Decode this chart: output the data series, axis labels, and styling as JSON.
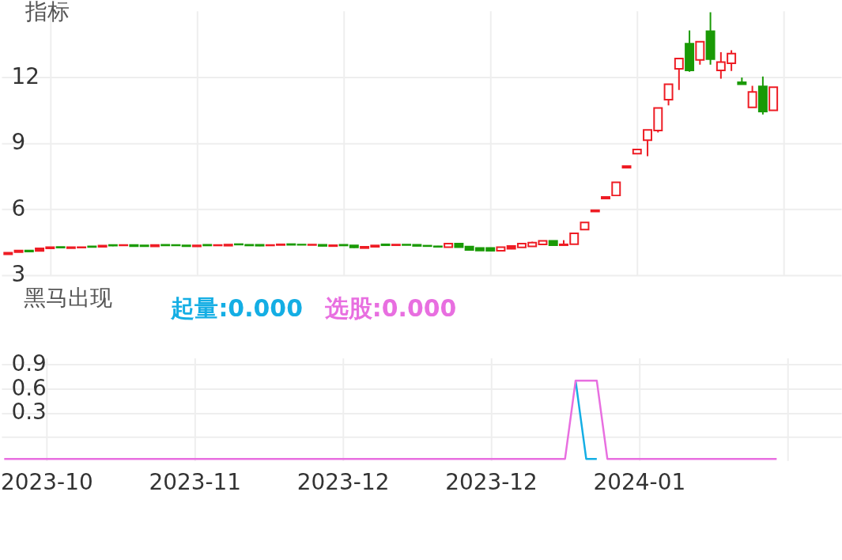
{
  "chart_data": [
    {
      "type": "candlestick",
      "title": "指标",
      "categories": [
        null,
        null,
        null,
        null,
        "2023-10",
        null,
        null,
        null,
        null,
        null,
        null,
        null,
        null,
        null,
        null,
        null,
        null,
        null,
        "2023-11",
        null,
        null,
        null,
        null,
        null,
        null,
        null,
        null,
        null,
        null,
        null,
        null,
        null,
        "2023-12",
        null,
        null,
        null,
        null,
        null,
        null,
        null,
        null,
        null,
        null,
        null,
        null,
        null,
        "2023-12",
        null,
        null,
        null,
        null,
        null,
        null,
        null,
        null,
        null,
        null,
        null,
        null,
        null,
        "2024-01",
        null,
        null,
        null,
        null,
        null,
        null,
        null,
        null,
        null,
        null,
        null,
        null,
        null
      ],
      "ohlc": [
        [
          3.95,
          4.02,
          3.93,
          4.02
        ],
        [
          4.05,
          4.13,
          4.04,
          4.12
        ],
        [
          4.12,
          4.13,
          4.06,
          4.07
        ],
        [
          4.1,
          4.22,
          4.1,
          4.22
        ],
        [
          4.22,
          4.28,
          4.19,
          4.27
        ],
        [
          4.28,
          4.28,
          4.24,
          4.25
        ],
        [
          4.23,
          4.28,
          4.23,
          4.27
        ],
        [
          4.25,
          4.28,
          4.25,
          4.27
        ],
        [
          4.31,
          4.31,
          4.27,
          4.28
        ],
        [
          4.29,
          4.34,
          4.29,
          4.34
        ],
        [
          4.37,
          4.38,
          4.32,
          4.34
        ],
        [
          4.35,
          4.37,
          4.35,
          4.37
        ],
        [
          4.37,
          4.37,
          4.31,
          4.32
        ],
        [
          4.35,
          4.35,
          4.31,
          4.32
        ],
        [
          4.31,
          4.37,
          4.31,
          4.37
        ],
        [
          4.38,
          4.38,
          4.34,
          4.35
        ],
        [
          4.37,
          4.37,
          4.34,
          4.35
        ],
        [
          4.35,
          4.35,
          4.31,
          4.32
        ],
        [
          4.31,
          4.35,
          4.31,
          4.35
        ],
        [
          4.38,
          4.38,
          4.34,
          4.35
        ],
        [
          4.35,
          4.38,
          4.35,
          4.37
        ],
        [
          4.34,
          4.39,
          4.34,
          4.39
        ],
        [
          4.41,
          4.41,
          4.37,
          4.39
        ],
        [
          4.38,
          4.38,
          4.34,
          4.35
        ],
        [
          4.38,
          4.38,
          4.32,
          4.34
        ],
        [
          4.35,
          4.37,
          4.35,
          4.37
        ],
        [
          4.37,
          4.41,
          4.37,
          4.4
        ],
        [
          4.41,
          4.41,
          4.37,
          4.38
        ],
        [
          4.39,
          4.39,
          4.37,
          4.38
        ],
        [
          4.37,
          4.4,
          4.37,
          4.39
        ],
        [
          4.38,
          4.38,
          4.32,
          4.33
        ],
        [
          4.32,
          4.36,
          4.32,
          4.36
        ],
        [
          4.38,
          4.38,
          4.34,
          4.35
        ],
        [
          4.35,
          4.35,
          4.24,
          4.26
        ],
        [
          4.23,
          4.3,
          4.22,
          4.29
        ],
        [
          4.29,
          4.35,
          4.29,
          4.35
        ],
        [
          4.4,
          4.4,
          4.35,
          4.36
        ],
        [
          4.36,
          4.39,
          4.36,
          4.39
        ],
        [
          4.39,
          4.39,
          4.36,
          4.37
        ],
        [
          4.38,
          4.38,
          4.32,
          4.33
        ],
        [
          4.34,
          4.34,
          4.31,
          4.32
        ],
        [
          4.31,
          4.33,
          4.28,
          4.29
        ],
        [
          4.27,
          4.43,
          4.27,
          4.43
        ],
        [
          4.43,
          4.43,
          4.26,
          4.27
        ],
        [
          4.3,
          4.3,
          4.14,
          4.15
        ],
        [
          4.24,
          4.24,
          4.11,
          4.12
        ],
        [
          4.24,
          4.24,
          4.09,
          4.11
        ],
        [
          4.11,
          4.27,
          4.11,
          4.27
        ],
        [
          4.2,
          4.33,
          4.18,
          4.33
        ],
        [
          4.26,
          4.43,
          4.26,
          4.43
        ],
        [
          4.31,
          4.52,
          4.31,
          4.48
        ],
        [
          4.4,
          4.56,
          4.4,
          4.56
        ],
        [
          4.56,
          4.56,
          4.36,
          4.36
        ],
        [
          4.36,
          4.59,
          4.35,
          4.4
        ],
        [
          4.41,
          4.9,
          4.41,
          4.9
        ],
        [
          5.07,
          5.39,
          5.07,
          5.39
        ],
        [
          5.89,
          5.95,
          5.89,
          5.95
        ],
        [
          6.48,
          6.55,
          6.48,
          6.55
        ],
        [
          6.62,
          7.22,
          6.6,
          7.22
        ],
        [
          7.88,
          7.95,
          7.88,
          7.95
        ],
        [
          8.52,
          8.71,
          8.49,
          8.71
        ],
        [
          9.13,
          9.6,
          8.4,
          9.6
        ],
        [
          9.57,
          10.59,
          9.48,
          10.59
        ],
        [
          10.97,
          11.67,
          10.71,
          11.67
        ],
        [
          12.37,
          12.84,
          11.41,
          12.84
        ],
        [
          13.51,
          14.11,
          12.24,
          12.3
        ],
        [
          12.78,
          13.6,
          12.56,
          13.6
        ],
        [
          14.08,
          14.94,
          12.56,
          12.81
        ],
        [
          12.3,
          13.13,
          11.92,
          12.68
        ],
        [
          12.62,
          13.22,
          12.27,
          13.06
        ],
        [
          11.76,
          11.98,
          11.67,
          11.67
        ],
        [
          10.62,
          11.6,
          10.62,
          11.32
        ],
        [
          11.57,
          12.02,
          10.3,
          10.43
        ],
        [
          10.49,
          11.54,
          10.49,
          11.54
        ]
      ],
      "colors": [
        "#ee1c24",
        "#ee1c24",
        "#1a9a06",
        "#ee1c24",
        "#ee1c24",
        "#1a9a06",
        "#ee1c24",
        "#ee1c24",
        "#1a9a06",
        "#ee1c24",
        "#1a9a06",
        "#ee1c24",
        "#1a9a06",
        "#1a9a06",
        "#ee1c24",
        "#1a9a06",
        "#1a9a06",
        "#1a9a06",
        "#ee1c24",
        "#1a9a06",
        "#ee1c24",
        "#ee1c24",
        "#1a9a06",
        "#1a9a06",
        "#1a9a06",
        "#ee1c24",
        "#ee1c24",
        "#1a9a06",
        "#1a9a06",
        "#ee1c24",
        "#1a9a06",
        "#ee1c24",
        "#1a9a06",
        "#1a9a06",
        "#ee1c24",
        "#ee1c24",
        "#1a9a06",
        "#ee1c24",
        "#1a9a06",
        "#1a9a06",
        "#1a9a06",
        "#1a9a06",
        "#ee1c24",
        "#1a9a06",
        "#1a9a06",
        "#1a9a06",
        "#1a9a06",
        "#ee1c24",
        "#ee1c24",
        "#ee1c24",
        "#ee1c24",
        "#ee1c24",
        "#1a9a06",
        "#ee1c24",
        "#ee1c24",
        "#ee1c24",
        "#ee1c24",
        "#ee1c24",
        "#ee1c24",
        "#ee1c24",
        "#ee1c24",
        "#ee1c24",
        "#ee1c24",
        "#ee1c24",
        "#ee1c24",
        "#1a9a06",
        "#ee1c24",
        "#1a9a06",
        "#ee1c24",
        "#ee1c24",
        "#1a9a06",
        "#ee1c24",
        "#1a9a06",
        "#ee1c24"
      ],
      "ylim": [
        3,
        15
      ],
      "yticks": [
        3,
        6,
        9,
        12
      ],
      "grid": true,
      "tick_labels": "y"
    },
    {
      "type": "line",
      "title": "黑马出现",
      "categories": [
        null,
        null,
        null,
        null,
        "2023-10",
        null,
        null,
        null,
        null,
        null,
        null,
        null,
        null,
        null,
        null,
        null,
        null,
        null,
        "2023-11",
        null,
        null,
        null,
        null,
        null,
        null,
        null,
        null,
        null,
        null,
        null,
        null,
        null,
        "2023-12",
        null,
        null,
        null,
        null,
        null,
        null,
        null,
        null,
        null,
        null,
        null,
        null,
        null,
        "2023-12",
        null,
        null,
        null,
        null,
        null,
        null,
        null,
        null,
        null,
        null,
        null,
        null,
        null,
        "2024-01",
        null,
        null,
        null,
        null,
        null,
        null,
        null,
        null,
        null,
        null,
        null,
        null,
        null
      ],
      "series": [
        {
          "color": "#14aee4",
          "values": [
            null,
            null,
            null,
            null,
            null,
            null,
            null,
            null,
            null,
            null,
            null,
            null,
            null,
            null,
            null,
            null,
            null,
            null,
            null,
            null,
            null,
            null,
            null,
            null,
            null,
            null,
            null,
            null,
            null,
            null,
            null,
            null,
            null,
            null,
            null,
            null,
            null,
            null,
            null,
            null,
            null,
            null,
            null,
            null,
            null,
            null,
            null,
            null,
            null,
            null,
            null,
            null,
            null,
            null,
            0.7,
            -0.27,
            -0.27,
            null,
            null,
            null,
            null,
            null,
            null,
            null,
            null,
            null,
            null,
            null,
            null,
            null,
            null,
            null,
            null,
            null
          ]
        },
        {
          "color": "#e86fe0",
          "values": [
            -0.27,
            -0.27,
            -0.27,
            -0.27,
            -0.27,
            -0.27,
            -0.27,
            -0.27,
            -0.27,
            -0.27,
            -0.27,
            -0.27,
            -0.27,
            -0.27,
            -0.27,
            -0.27,
            -0.27,
            -0.27,
            -0.27,
            -0.27,
            -0.27,
            -0.27,
            -0.27,
            -0.27,
            -0.27,
            -0.27,
            -0.27,
            -0.27,
            -0.27,
            -0.27,
            -0.27,
            -0.27,
            -0.27,
            -0.27,
            -0.27,
            -0.27,
            -0.27,
            -0.27,
            -0.27,
            -0.27,
            -0.27,
            -0.27,
            -0.27,
            -0.27,
            -0.27,
            -0.27,
            -0.27,
            -0.27,
            -0.27,
            -0.27,
            -0.27,
            -0.27,
            -0.27,
            -0.27,
            0.7,
            0.7,
            0.7,
            -0.27,
            -0.27,
            -0.27,
            -0.27,
            -0.27,
            -0.27,
            -0.27,
            -0.27,
            -0.27,
            -0.27,
            -0.27,
            -0.27,
            -0.27,
            -0.27,
            -0.27,
            -0.27,
            -0.27
          ]
        }
      ],
      "annotations": [
        "起量:0.000",
        "选股:0.000"
      ],
      "ylim": [
        -0.29,
        0.98
      ],
      "yticks": [
        {
          "value": 0,
          "label": null
        },
        0.3,
        0.6,
        0.9
      ],
      "grid": true
    }
  ]
}
